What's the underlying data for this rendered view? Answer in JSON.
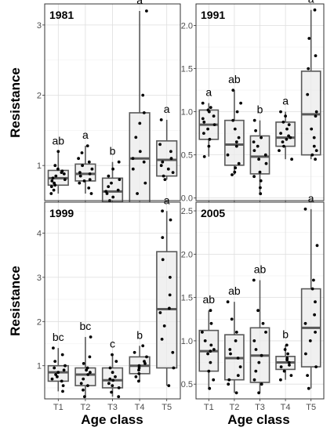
{
  "figure": {
    "ylabel": "Resistance",
    "xlabel": "Age class"
  },
  "chart_data": [
    {
      "type": "boxplot",
      "title": "1981",
      "categories": [
        "T1",
        "T2",
        "T3",
        "T4",
        "T5"
      ],
      "ylim": [
        0.5,
        3.3
      ],
      "yticks": [
        1,
        2,
        3
      ],
      "grid": true,
      "boxes": [
        {
          "min": 0.6,
          "q1": 0.72,
          "median": 0.82,
          "q3": 0.93,
          "max": 1.2
        },
        {
          "min": 0.6,
          "q1": 0.78,
          "median": 0.88,
          "q3": 1.02,
          "max": 1.28
        },
        {
          "min": 0.22,
          "q1": 0.48,
          "median": 0.63,
          "q3": 0.82,
          "max": 1.05
        },
        {
          "min": 0.32,
          "q1": 0.45,
          "median": 1.1,
          "q3": 1.75,
          "max": 3.2
        },
        {
          "min": 0.8,
          "q1": 0.85,
          "median": 1.08,
          "q3": 1.35,
          "max": 1.65
        }
      ],
      "letters": [
        "ab",
        "a",
        "b",
        "a",
        "a"
      ],
      "points": [
        [
          0.6,
          0.65,
          0.7,
          0.72,
          0.75,
          0.78,
          0.8,
          0.82,
          0.85,
          0.88,
          0.9,
          0.92,
          0.95,
          1.0,
          1.2
        ],
        [
          0.6,
          0.68,
          0.75,
          0.78,
          0.8,
          0.85,
          0.88,
          0.9,
          0.95,
          1.0,
          1.05,
          1.1,
          1.18,
          1.28
        ],
        [
          0.22,
          0.35,
          0.45,
          0.5,
          0.55,
          0.6,
          0.63,
          0.65,
          0.7,
          0.75,
          0.8,
          0.85,
          0.95,
          1.05
        ],
        [
          0.32,
          0.45,
          0.6,
          0.75,
          0.95,
          1.05,
          1.1,
          1.2,
          1.4,
          1.6,
          1.75,
          2.0,
          3.2
        ],
        [
          0.8,
          0.85,
          0.9,
          0.95,
          1.0,
          1.05,
          1.1,
          1.2,
          1.3,
          1.65
        ]
      ]
    },
    {
      "type": "boxplot",
      "title": "1991",
      "categories": [
        "T1",
        "T2",
        "T3",
        "T4",
        "T5"
      ],
      "ylim": [
        -0.03,
        2.25
      ],
      "yticks": [
        0.0,
        0.5,
        1.0,
        1.5,
        2.0
      ],
      "grid": true,
      "boxes": [
        {
          "min": 0.48,
          "q1": 0.68,
          "median": 0.85,
          "q3": 1.02,
          "max": 1.1
        },
        {
          "min": 0.27,
          "q1": 0.38,
          "median": 0.62,
          "q3": 0.9,
          "max": 1.25
        },
        {
          "min": 0.05,
          "q1": 0.28,
          "median": 0.48,
          "q3": 0.72,
          "max": 0.9
        },
        {
          "min": 0.45,
          "q1": 0.6,
          "median": 0.7,
          "q3": 0.88,
          "max": 1.0
        },
        {
          "min": 0.45,
          "q1": 0.5,
          "median": 0.97,
          "q3": 1.47,
          "max": 2.18
        }
      ],
      "letters": [
        "a",
        "ab",
        "b",
        "a",
        "a"
      ],
      "points": [
        [
          0.48,
          0.6,
          0.68,
          0.75,
          0.8,
          0.85,
          0.88,
          0.92,
          0.95,
          1.0,
          1.02,
          1.05,
          1.1
        ],
        [
          0.27,
          0.3,
          0.35,
          0.4,
          0.5,
          0.6,
          0.65,
          0.7,
          0.8,
          0.9,
          1.0,
          1.1,
          1.25
        ],
        [
          0.05,
          0.12,
          0.2,
          0.25,
          0.3,
          0.4,
          0.45,
          0.5,
          0.55,
          0.6,
          0.65,
          0.7,
          0.78,
          0.9
        ],
        [
          0.45,
          0.55,
          0.6,
          0.65,
          0.68,
          0.7,
          0.72,
          0.75,
          0.8,
          0.85,
          0.88,
          0.95,
          1.0
        ],
        [
          0.45,
          0.5,
          0.55,
          0.6,
          0.7,
          0.8,
          0.95,
          1.0,
          1.2,
          1.5,
          1.65,
          1.85,
          2.18
        ]
      ]
    },
    {
      "type": "boxplot",
      "title": "1999",
      "categories": [
        "T1",
        "T2",
        "T3",
        "T4",
        "T5"
      ],
      "ylim": [
        0.25,
        4.7
      ],
      "yticks": [
        1,
        2,
        3,
        4
      ],
      "grid": true,
      "boxes": [
        {
          "min": 0.42,
          "q1": 0.65,
          "median": 0.85,
          "q3": 1.0,
          "max": 1.4
        },
        {
          "min": 0.3,
          "q1": 0.55,
          "median": 0.8,
          "q3": 0.95,
          "max": 1.65
        },
        {
          "min": 0.3,
          "q1": 0.5,
          "median": 0.67,
          "q3": 0.95,
          "max": 1.25
        },
        {
          "min": 0.65,
          "q1": 0.82,
          "median": 1.0,
          "q3": 1.2,
          "max": 1.45
        },
        {
          "min": 0.55,
          "q1": 0.95,
          "median": 2.28,
          "q3": 3.58,
          "max": 4.5
        }
      ],
      "letters": [
        "bc",
        "bc",
        "c",
        "b",
        "a"
      ],
      "points": [
        [
          0.42,
          0.55,
          0.65,
          0.7,
          0.75,
          0.8,
          0.85,
          0.9,
          0.95,
          1.0,
          1.1,
          1.25,
          1.4
        ],
        [
          0.3,
          0.45,
          0.55,
          0.6,
          0.7,
          0.8,
          0.85,
          0.9,
          0.95,
          1.05,
          1.2,
          1.65
        ],
        [
          0.3,
          0.4,
          0.5,
          0.55,
          0.6,
          0.67,
          0.7,
          0.75,
          0.85,
          0.95,
          1.1,
          1.25
        ],
        [
          0.65,
          0.75,
          0.82,
          0.9,
          0.95,
          1.0,
          1.05,
          1.1,
          1.2,
          1.3,
          1.45
        ],
        [
          0.55,
          0.95,
          1.3,
          1.6,
          1.9,
          2.2,
          2.3,
          2.6,
          3.0,
          3.4,
          3.9,
          4.3,
          4.5
        ]
      ]
    },
    {
      "type": "boxplot",
      "title": "2005",
      "categories": [
        "T1",
        "T2",
        "T3",
        "T4",
        "T5"
      ],
      "ylim": [
        0.33,
        2.6
      ],
      "yticks": [
        0.5,
        1.0,
        1.5,
        2.0,
        2.5
      ],
      "grid": true,
      "boxes": [
        {
          "min": 0.45,
          "q1": 0.65,
          "median": 0.88,
          "q3": 1.12,
          "max": 1.35
        },
        {
          "min": 0.4,
          "q1": 0.55,
          "median": 0.8,
          "q3": 1.07,
          "max": 1.45
        },
        {
          "min": 0.4,
          "q1": 0.52,
          "median": 0.83,
          "q3": 1.15,
          "max": 1.7
        },
        {
          "min": 0.55,
          "q1": 0.67,
          "median": 0.75,
          "q3": 0.82,
          "max": 0.95
        },
        {
          "min": 0.45,
          "q1": 0.7,
          "median": 1.15,
          "q3": 1.6,
          "max": 2.52
        }
      ],
      "letters": [
        "ab",
        "ab",
        "ab",
        "b",
        "a"
      ],
      "points": [
        [
          0.45,
          0.55,
          0.65,
          0.75,
          0.85,
          0.88,
          0.9,
          0.95,
          1.0,
          1.1,
          1.2,
          1.35
        ],
        [
          0.4,
          0.5,
          0.55,
          0.6,
          0.7,
          0.8,
          0.85,
          0.9,
          1.0,
          1.1,
          1.25,
          1.45
        ],
        [
          0.4,
          0.5,
          0.55,
          0.65,
          0.75,
          0.83,
          0.9,
          1.0,
          1.1,
          1.2,
          1.35,
          1.7
        ],
        [
          0.55,
          0.6,
          0.65,
          0.7,
          0.72,
          0.75,
          0.78,
          0.8,
          0.85,
          0.9,
          0.95
        ],
        [
          0.45,
          0.6,
          0.7,
          0.85,
          1.0,
          1.1,
          1.2,
          1.3,
          1.45,
          1.6,
          1.7,
          2.1,
          2.52
        ]
      ]
    }
  ]
}
